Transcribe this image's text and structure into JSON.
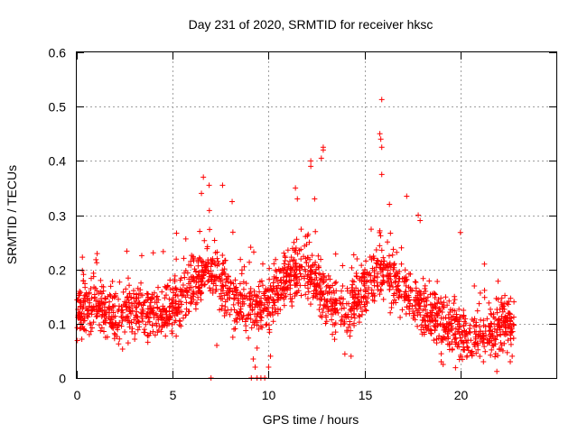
{
  "chart_data": {
    "type": "scatter",
    "title": "Day 231 of 2020, SRMTID for receiver hksc",
    "xlabel": "GPS time / hours",
    "ylabel": "SRMTID / TECUs",
    "xlim": [
      0,
      25
    ],
    "ylim": [
      0,
      0.6
    ],
    "xticks": [
      0,
      5,
      10,
      15,
      20
    ],
    "yticks": [
      0,
      0.1,
      0.2,
      0.3,
      0.4,
      0.5,
      0.6
    ],
    "xtick_labels": [
      "0",
      "5",
      "10",
      "15",
      "20"
    ],
    "ytick_labels": [
      "0",
      "0.1",
      "0.2",
      "0.3",
      "0.4",
      "0.5",
      "0.6"
    ],
    "grid": true,
    "marker": "+",
    "color": "#ff0000",
    "series": [
      {
        "name": "SRMTID",
        "trend": [
          [
            0,
            0.12
          ],
          [
            1,
            0.14
          ],
          [
            2,
            0.11
          ],
          [
            3,
            0.13
          ],
          [
            4,
            0.12
          ],
          [
            5,
            0.13
          ],
          [
            6,
            0.17
          ],
          [
            7,
            0.2
          ],
          [
            8,
            0.15
          ],
          [
            9,
            0.13
          ],
          [
            10,
            0.14
          ],
          [
            11,
            0.19
          ],
          [
            12,
            0.2
          ],
          [
            13,
            0.15
          ],
          [
            14,
            0.12
          ],
          [
            15,
            0.17
          ],
          [
            16,
            0.2
          ],
          [
            17,
            0.16
          ],
          [
            18,
            0.13
          ],
          [
            19,
            0.1
          ],
          [
            20,
            0.08
          ],
          [
            21,
            0.08
          ],
          [
            22,
            0.09
          ],
          [
            22.8,
            0.1
          ]
        ],
        "spread": 0.05,
        "points_per_hour": 90,
        "outliers": [
          [
            15.9,
            0.513
          ],
          [
            15.8,
            0.45
          ],
          [
            15.85,
            0.44
          ],
          [
            15.9,
            0.425
          ],
          [
            15.9,
            0.375
          ],
          [
            12.85,
            0.425
          ],
          [
            12.85,
            0.42
          ],
          [
            12.75,
            0.405
          ],
          [
            12.2,
            0.4
          ],
          [
            12.2,
            0.39
          ],
          [
            6.6,
            0.37
          ],
          [
            6.9,
            0.355
          ],
          [
            6.5,
            0.34
          ],
          [
            7.6,
            0.355
          ],
          [
            8.1,
            0.325
          ],
          [
            11.4,
            0.35
          ],
          [
            11.5,
            0.33
          ],
          [
            12.4,
            0.33
          ],
          [
            17.2,
            0.335
          ],
          [
            16.3,
            0.32
          ],
          [
            17.8,
            0.3
          ],
          [
            17.9,
            0.29
          ],
          [
            20.0,
            0.268
          ],
          [
            7.0,
            0.0
          ],
          [
            9.1,
            0.0
          ],
          [
            9.4,
            0.0
          ],
          [
            9.6,
            0.0
          ],
          [
            9.8,
            0.0
          ],
          [
            9.3,
            0.02
          ],
          [
            9.2,
            0.035
          ],
          [
            9.4,
            0.055
          ],
          [
            10.0,
            0.02
          ],
          [
            10.1,
            0.04
          ],
          [
            7.3,
            0.06
          ],
          [
            19.0,
            0.03
          ],
          [
            19.1,
            0.025
          ],
          [
            21.2,
            0.03
          ],
          [
            21.9,
            0.012
          ],
          [
            22.6,
            0.03
          ],
          [
            22.7,
            0.04
          ],
          [
            14.3,
            0.04
          ]
        ]
      }
    ]
  }
}
